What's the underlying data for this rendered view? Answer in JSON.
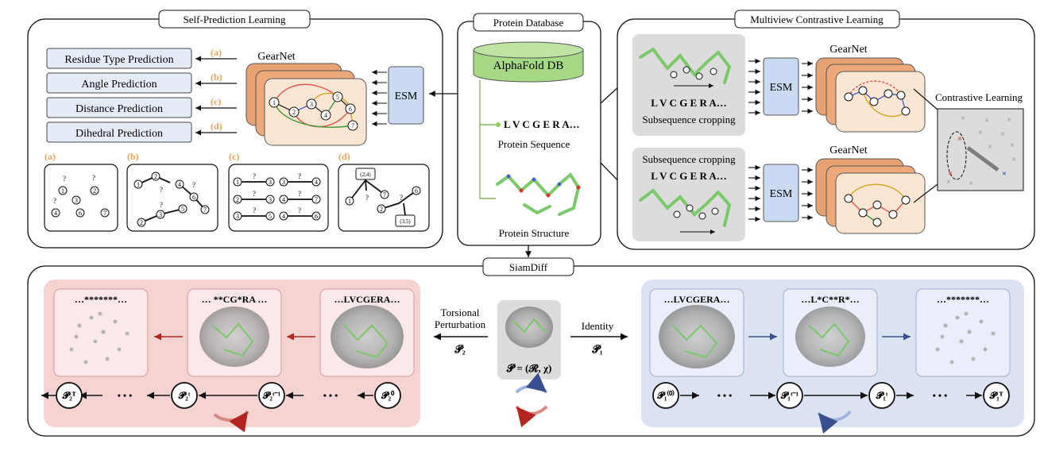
{
  "panels": {
    "self_prediction": {
      "title": "Self-Prediction Learning",
      "tasks": [
        {
          "label": "Residue Type Prediction",
          "tag": "(a)"
        },
        {
          "label": "Angle Prediction",
          "tag": "(b)"
        },
        {
          "label": "Distance Prediction",
          "tag": "(c)"
        },
        {
          "label": "Dihedral Prediction",
          "tag": "(d)"
        }
      ],
      "encoder": "GearNet",
      "esm": "ESM",
      "examples": [
        "(a)",
        "(b)",
        "(c)",
        "(d)"
      ],
      "node_labels_a": [
        "1",
        "2",
        "3",
        "4",
        "6",
        "7"
      ],
      "dihedral_labels": [
        "(2,4)",
        "(3,5)"
      ],
      "unknown_mark": "?"
    },
    "database": {
      "title": "Protein Database",
      "db_name": "AlphaFold DB",
      "sequence": "L V C G E R A…",
      "sequence_label": "Protein Sequence",
      "structure_label": "Protein Structure"
    },
    "multiview": {
      "title": "Multiview Contrastive Learning",
      "view1_sequence": "L V C G E R A…",
      "view1_caption": "Subsequence cropping",
      "view2_caption": "Subsequence cropping",
      "view2_sequence": "L V C G E R A…",
      "esm": "ESM",
      "encoder": "GearNet",
      "contrastive_label": "Contrastive Learning"
    },
    "siamdiff": {
      "title": "SiamDiff",
      "left_seqs": [
        "…*******…",
        "… **CG*RA …",
        "…LVCGERA…"
      ],
      "right_seqs": [
        "…LVCGERA…",
        "…L*C**R*…",
        "…*******…"
      ],
      "left_arrow_label_1": "Torsional",
      "left_arrow_label_2": "Perturbation",
      "left_arrow_symbol": "𝓟₂",
      "right_arrow_label": "Identity",
      "right_arrow_symbol": "𝓟₁",
      "center_formula": "𝓟 = (𝓡, χ)",
      "left_states": [
        "𝓟₂ᵀ",
        "𝓟₂ᵗ",
        "𝓟₂ᵗ⁻¹",
        "𝓟₂⁰"
      ],
      "right_states": [
        "𝓟₁⁽⁰⁾",
        "𝓟₁ᵗ⁻¹",
        "𝓟₁ᵗ",
        "𝓟₁ᵀ"
      ],
      "dots": "• • •"
    }
  },
  "colors": {
    "orange_tag": "#e8a25c",
    "task_box": "#e6ecf7",
    "esm_box": "#c9daf2",
    "gearnet_back": "#e6a272",
    "gearnet_front": "#fbe6d4",
    "db_green": "#a6d985",
    "gray_panel": "#dcdcdc",
    "pink_panel": "#f5d3d3",
    "blue_panel": "#dbe3f2",
    "red_arrow": "#b2261f",
    "blue_arrow": "#3a4f8f"
  }
}
